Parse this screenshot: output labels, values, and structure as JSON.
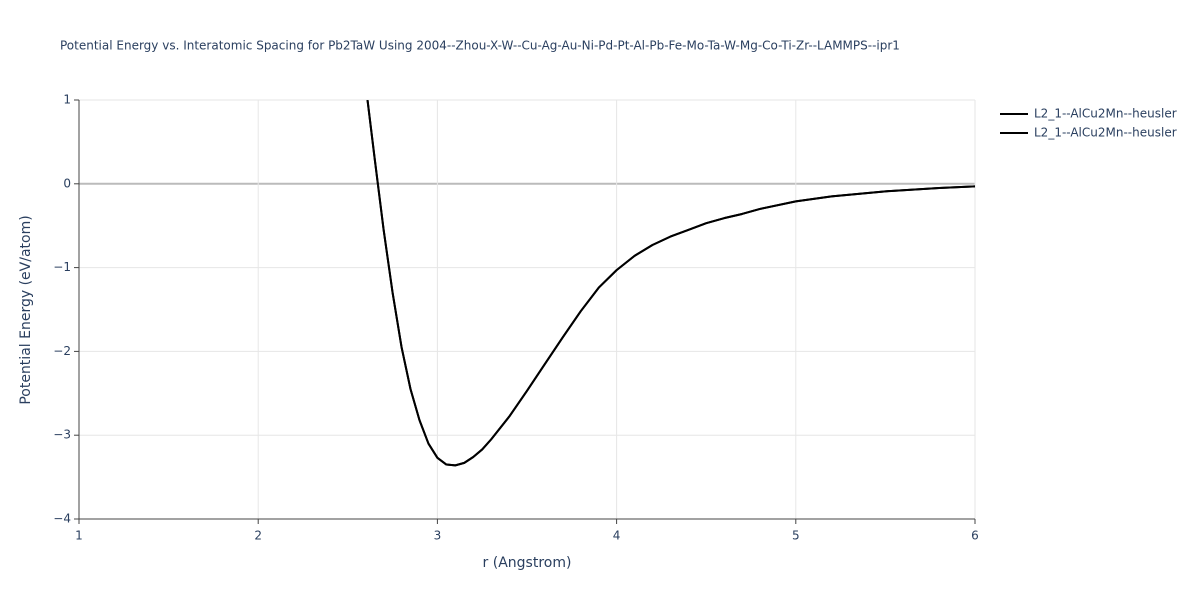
{
  "chart_data": {
    "type": "line",
    "title": "Potential Energy vs. Interatomic Spacing for Pb2TaW Using 2004--Zhou-X-W--Cu-Ag-Au-Ni-Pd-Pt-Al-Pb-Fe-Mo-Ta-W-Mg-Co-Ti-Zr--LAMMPS--ipr1",
    "x_label": "r (Angstrom)",
    "y_label": "Potential Energy (eV/atom)",
    "x": [
      2.61,
      2.65,
      2.7,
      2.75,
      2.8,
      2.85,
      2.9,
      2.95,
      3.0,
      3.05,
      3.1,
      3.15,
      3.2,
      3.25,
      3.3,
      3.4,
      3.5,
      3.6,
      3.7,
      3.8,
      3.9,
      4.0,
      4.1,
      4.2,
      4.3,
      4.4,
      4.5,
      4.6,
      4.7,
      4.8,
      5.0,
      5.2,
      5.5,
      5.8,
      6.0
    ],
    "series": [
      {
        "name": "L2_1--AlCu2Mn--heusler",
        "color": "#000000",
        "values": [
          1.0,
          0.3,
          -0.55,
          -1.3,
          -1.95,
          -2.45,
          -2.82,
          -3.1,
          -3.27,
          -3.35,
          -3.36,
          -3.33,
          -3.26,
          -3.17,
          -3.05,
          -2.78,
          -2.47,
          -2.15,
          -1.83,
          -1.52,
          -1.24,
          -1.03,
          -0.86,
          -0.73,
          -0.63,
          -0.55,
          -0.47,
          -0.41,
          -0.36,
          -0.3,
          -0.21,
          -0.15,
          -0.09,
          -0.05,
          -0.03
        ]
      },
      {
        "name": "L2_1--AlCu2Mn--heusler",
        "color": "#000000",
        "values": [
          1.0,
          0.3,
          -0.55,
          -1.3,
          -1.95,
          -2.45,
          -2.82,
          -3.1,
          -3.27,
          -3.35,
          -3.36,
          -3.33,
          -3.26,
          -3.17,
          -3.05,
          -2.78,
          -2.47,
          -2.15,
          -1.83,
          -1.52,
          -1.24,
          -1.03,
          -0.86,
          -0.73,
          -0.63,
          -0.55,
          -0.47,
          -0.41,
          -0.36,
          -0.3,
          -0.21,
          -0.15,
          -0.09,
          -0.05,
          -0.03
        ]
      }
    ],
    "xlim": [
      1,
      6
    ],
    "xticks": [
      1,
      2,
      3,
      4,
      5,
      6
    ],
    "ylim": [
      -4,
      1
    ],
    "yticks": [
      {
        "value": -4,
        "label": "−4"
      },
      {
        "value": -3,
        "label": "−3"
      },
      {
        "value": -2,
        "label": "−2"
      },
      {
        "value": -1,
        "label": "−1"
      },
      0,
      1
    ],
    "grid": true
  }
}
